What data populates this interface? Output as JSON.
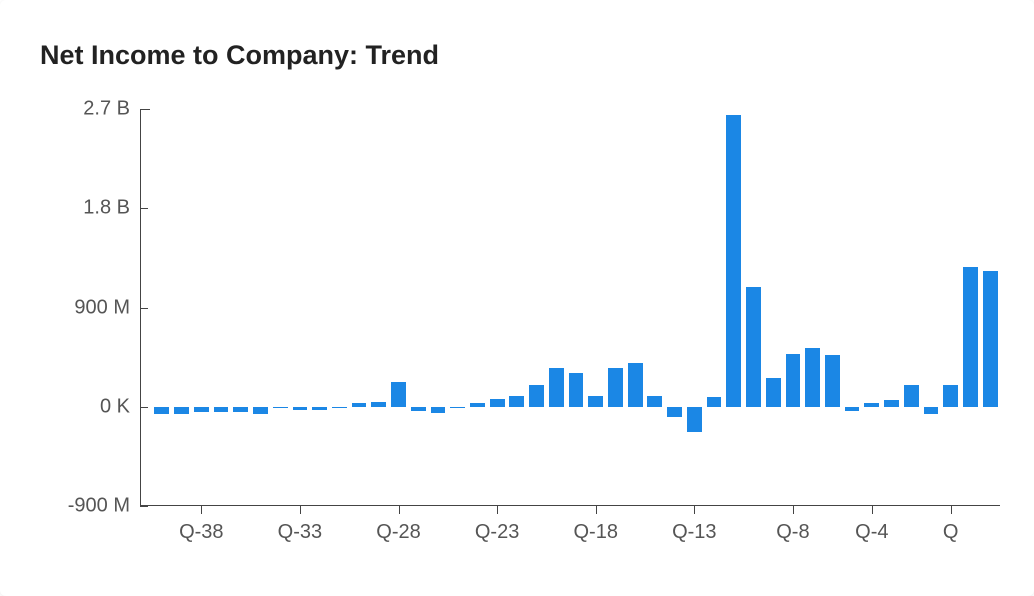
{
  "title": "Net Income to Company: Trend",
  "chart": {
    "type": "bar",
    "bar_color": "#1b87e5",
    "axis_color": "#444444",
    "text_color": "#555555",
    "background_color": "#ffffff",
    "title_fontsize": 27,
    "axis_fontsize": 20,
    "y_axis": {
      "min": -900,
      "max": 2700,
      "zero": 0,
      "ticks": [
        {
          "v": 2700,
          "label": "2.7 B"
        },
        {
          "v": 1800,
          "label": "1.8 B"
        },
        {
          "v": 900,
          "label": "900 M"
        },
        {
          "v": 0,
          "label": "0 K"
        },
        {
          "v": -900,
          "label": "-900 M"
        }
      ]
    },
    "x_axis": {
      "ticks": [
        {
          "i": 2,
          "label": "Q-38"
        },
        {
          "i": 7,
          "label": "Q-33"
        },
        {
          "i": 12,
          "label": "Q-28"
        },
        {
          "i": 17,
          "label": "Q-23"
        },
        {
          "i": 22,
          "label": "Q-18"
        },
        {
          "i": 27,
          "label": "Q-13"
        },
        {
          "i": 32,
          "label": "Q-8"
        },
        {
          "i": 36,
          "label": "Q-4"
        },
        {
          "i": 40,
          "label": "Q"
        }
      ]
    },
    "bar_gap_ratio": 0.25,
    "values": [
      -70,
      -70,
      -50,
      -50,
      -50,
      -70,
      -15,
      -30,
      -30,
      -15,
      30,
      40,
      220,
      -40,
      -60,
      -15,
      30,
      70,
      100,
      200,
      350,
      310,
      100,
      350,
      400,
      100,
      -90,
      -230,
      90,
      2650,
      1090,
      260,
      480,
      530,
      470,
      -40,
      30,
      60,
      200,
      -70,
      200,
      1270,
      1230
    ]
  }
}
